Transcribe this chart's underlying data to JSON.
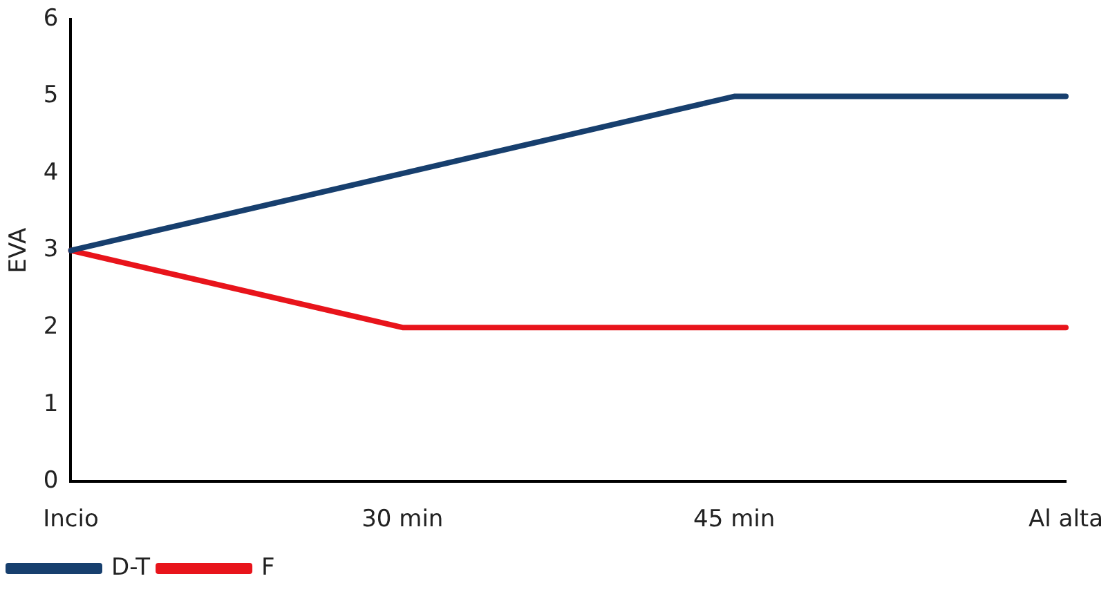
{
  "chart_data": {
    "type": "line",
    "ylabel": "EVA",
    "categories": [
      "Incio",
      "30 min",
      "45 min",
      "Al alta"
    ],
    "series": [
      {
        "name": "D-T",
        "color": "#173f6e",
        "values": [
          3,
          4,
          5,
          5
        ]
      },
      {
        "name": "F",
        "color": "#e8141b",
        "values": [
          3,
          2,
          2,
          2
        ]
      }
    ],
    "ylim": [
      0,
      6
    ],
    "yticks": [
      0,
      1,
      2,
      3,
      4,
      5,
      6
    ],
    "grid": false,
    "legend": "bottom left",
    "marker": "none",
    "line_style": "solid"
  }
}
